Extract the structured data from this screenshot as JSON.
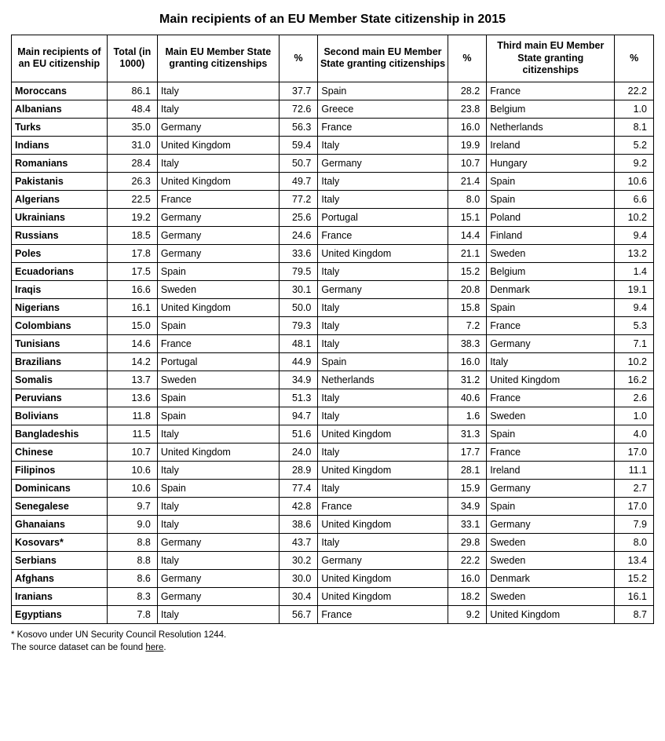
{
  "title": "Main recipients of an EU Member State citizenship in 2015",
  "columns": [
    "Main recipients of an EU citizenship",
    "Total (in 1000)",
    "Main EU Member State granting citizenships",
    "%",
    "Second main EU Member State granting citizenships",
    "%",
    "Third main EU Member State granting citizenships",
    "%"
  ],
  "rows": [
    [
      "Moroccans",
      "86.1",
      "Italy",
      "37.7",
      "Spain",
      "28.2",
      "France",
      "22.2"
    ],
    [
      "Albanians",
      "48.4",
      "Italy",
      "72.6",
      "Greece",
      "23.8",
      "Belgium",
      "1.0"
    ],
    [
      "Turks",
      "35.0",
      "Germany",
      "56.3",
      "France",
      "16.0",
      "Netherlands",
      "8.1"
    ],
    [
      "Indians",
      "31.0",
      "United Kingdom",
      "59.4",
      "Italy",
      "19.9",
      "Ireland",
      "5.2"
    ],
    [
      "Romanians",
      "28.4",
      "Italy",
      "50.7",
      "Germany",
      "10.7",
      "Hungary",
      "9.2"
    ],
    [
      "Pakistanis",
      "26.3",
      "United Kingdom",
      "49.7",
      "Italy",
      "21.4",
      "Spain",
      "10.6"
    ],
    [
      "Algerians",
      "22.5",
      "France",
      "77.2",
      "Italy",
      "8.0",
      "Spain",
      "6.6"
    ],
    [
      "Ukrainians",
      "19.2",
      "Germany",
      "25.6",
      "Portugal",
      "15.1",
      "Poland",
      "10.2"
    ],
    [
      "Russians",
      "18.5",
      "Germany",
      "24.6",
      "France",
      "14.4",
      "Finland",
      "9.4"
    ],
    [
      "Poles",
      "17.8",
      "Germany",
      "33.6",
      "United Kingdom",
      "21.1",
      "Sweden",
      "13.2"
    ],
    [
      "Ecuadorians",
      "17.5",
      "Spain",
      "79.5",
      "Italy",
      "15.2",
      "Belgium",
      "1.4"
    ],
    [
      "Iraqis",
      "16.6",
      "Sweden",
      "30.1",
      "Germany",
      "20.8",
      "Denmark",
      "19.1"
    ],
    [
      "Nigerians",
      "16.1",
      "United Kingdom",
      "50.0",
      "Italy",
      "15.8",
      "Spain",
      "9.4"
    ],
    [
      "Colombians",
      "15.0",
      "Spain",
      "79.3",
      "Italy",
      "7.2",
      "France",
      "5.3"
    ],
    [
      "Tunisians",
      "14.6",
      "France",
      "48.1",
      "Italy",
      "38.3",
      "Germany",
      "7.1"
    ],
    [
      "Brazilians",
      "14.2",
      "Portugal",
      "44.9",
      "Spain",
      "16.0",
      "Italy",
      "10.2"
    ],
    [
      "Somalis",
      "13.7",
      "Sweden",
      "34.9",
      "Netherlands",
      "31.2",
      "United Kingdom",
      "16.2"
    ],
    [
      "Peruvians",
      "13.6",
      "Spain",
      "51.3",
      "Italy",
      "40.6",
      "France",
      "2.6"
    ],
    [
      "Bolivians",
      "11.8",
      "Spain",
      "94.7",
      "Italy",
      "1.6",
      "Sweden",
      "1.0"
    ],
    [
      "Bangladeshis",
      "11.5",
      "Italy",
      "51.6",
      "United Kingdom",
      "31.3",
      "Spain",
      "4.0"
    ],
    [
      "Chinese",
      "10.7",
      "United Kingdom",
      "24.0",
      "Italy",
      "17.7",
      "France",
      "17.0"
    ],
    [
      "Filipinos",
      "10.6",
      "Italy",
      "28.9",
      "United Kingdom",
      "28.1",
      "Ireland",
      "11.1"
    ],
    [
      "Dominicans",
      "10.6",
      "Spain",
      "77.4",
      "Italy",
      "15.9",
      "Germany",
      "2.7"
    ],
    [
      "Senegalese",
      "9.7",
      "Italy",
      "42.8",
      "France",
      "34.9",
      "Spain",
      "17.0"
    ],
    [
      "Ghanaians",
      "9.0",
      "Italy",
      "38.6",
      "United Kingdom",
      "33.1",
      "Germany",
      "7.9"
    ],
    [
      "Kosovars*",
      "8.8",
      "Germany",
      "43.7",
      "Italy",
      "29.8",
      "Sweden",
      "8.0"
    ],
    [
      "Serbians",
      "8.8",
      "Italy",
      "30.2",
      "Germany",
      "22.2",
      "Sweden",
      "13.4"
    ],
    [
      "Afghans",
      "8.6",
      "Germany",
      "30.0",
      "United Kingdom",
      "16.0",
      "Denmark",
      "15.2"
    ],
    [
      "Iranians",
      "8.3",
      "Germany",
      "30.4",
      "United Kingdom",
      "18.2",
      "Sweden",
      "16.1"
    ],
    [
      "Egyptians",
      "7.8",
      "Italy",
      "56.7",
      "France",
      "9.2",
      "United Kingdom",
      "8.7"
    ]
  ],
  "footnote1": "* Kosovo under UN Security Council Resolution 1244.",
  "footnote2_prefix": "The source dataset can be found ",
  "footnote2_link": "here",
  "footnote2_suffix": "."
}
